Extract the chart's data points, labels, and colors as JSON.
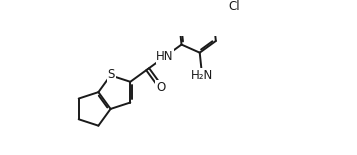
{
  "bg_color": "#ffffff",
  "line_color": "#1a1a1a",
  "line_width": 1.4,
  "font_size": 8.5,
  "S_label": "S",
  "HN_label": "HN",
  "O_label": "O",
  "Cl_label": "Cl",
  "NH2_label": "H₂N"
}
